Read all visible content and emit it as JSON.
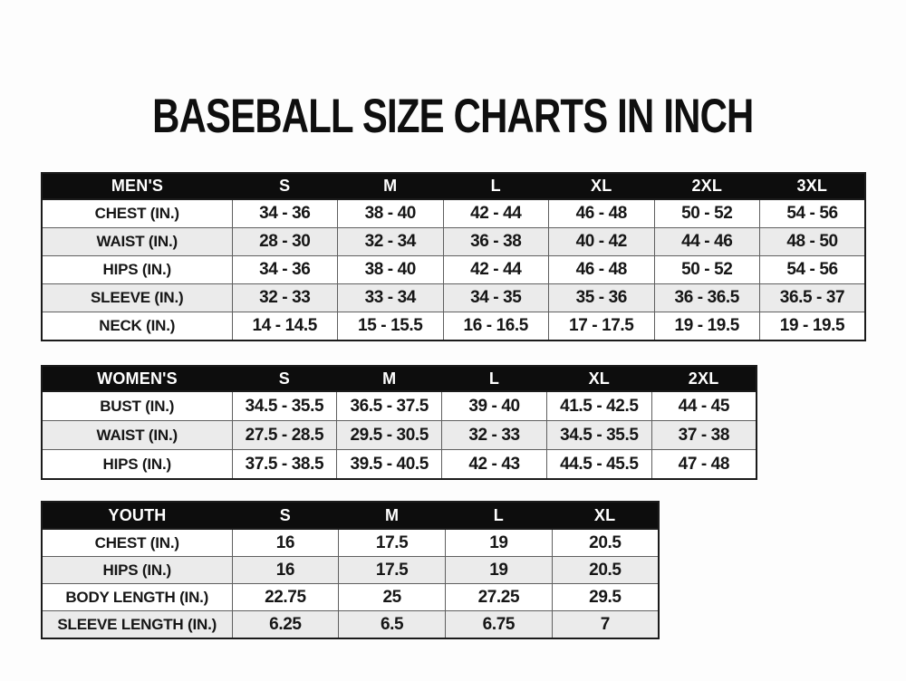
{
  "page": {
    "title": "BASEBALL SIZE CHARTS IN INCH"
  },
  "colors": {
    "background": "#fdfdfd",
    "header_bg": "#0d0d0d",
    "header_text": "#ffffff",
    "row_stripe_bg": "#ebebeb",
    "row_bg": "#ffffff",
    "outer_border": "#1b1b1b",
    "inner_border": "#5f5f5f",
    "text": "#161616"
  },
  "tables": [
    {
      "id": "mens",
      "header": [
        "MEN'S",
        "S",
        "M",
        "L",
        "XL",
        "2XL",
        "3XL"
      ],
      "rows": [
        {
          "label": "CHEST (IN.)",
          "values": [
            "34 - 36",
            "38 - 40",
            "42 - 44",
            "46 - 48",
            "50 - 52",
            "54 - 56"
          ]
        },
        {
          "label": "WAIST (IN.)",
          "values": [
            "28 - 30",
            "32 - 34",
            "36 - 38",
            "40 - 42",
            "44 - 46",
            "48 - 50"
          ]
        },
        {
          "label": "HIPS (IN.)",
          "values": [
            "34 - 36",
            "38 - 40",
            "42 - 44",
            "46 - 48",
            "50 - 52",
            "54 - 56"
          ]
        },
        {
          "label": "SLEEVE (IN.)",
          "values": [
            "32 - 33",
            "33 - 34",
            "34 - 35",
            "35 - 36",
            "36 - 36.5",
            "36.5 - 37"
          ]
        },
        {
          "label": "NECK (IN.)",
          "values": [
            "14 - 14.5",
            "15 - 15.5",
            "16 - 16.5",
            "17 - 17.5",
            "19 - 19.5",
            "19 - 19.5"
          ]
        }
      ]
    },
    {
      "id": "womens",
      "header": [
        "WOMEN'S",
        "S",
        "M",
        "L",
        "XL",
        "2XL"
      ],
      "rows": [
        {
          "label": "BUST (IN.)",
          "values": [
            "34.5 - 35.5",
            "36.5 - 37.5",
            "39 - 40",
            "41.5 - 42.5",
            "44 - 45"
          ]
        },
        {
          "label": "WAIST (IN.)",
          "values": [
            "27.5 - 28.5",
            "29.5 - 30.5",
            "32 - 33",
            "34.5 - 35.5",
            "37 - 38"
          ]
        },
        {
          "label": "HIPS (IN.)",
          "values": [
            "37.5 - 38.5",
            "39.5 - 40.5",
            "42 - 43",
            "44.5 - 45.5",
            "47 - 48"
          ]
        }
      ]
    },
    {
      "id": "youth",
      "header": [
        "YOUTH",
        "S",
        "M",
        "L",
        "XL"
      ],
      "rows": [
        {
          "label": "CHEST (IN.)",
          "values": [
            "16",
            "17.5",
            "19",
            "20.5"
          ]
        },
        {
          "label": "HIPS (IN.)",
          "values": [
            "16",
            "17.5",
            "19",
            "20.5"
          ]
        },
        {
          "label": "BODY LENGTH (IN.)",
          "values": [
            "22.75",
            "25",
            "27.25",
            "29.5"
          ]
        },
        {
          "label": "SLEEVE LENGTH (IN.)",
          "values": [
            "6.25",
            "6.5",
            "6.75",
            "7"
          ]
        }
      ]
    }
  ]
}
